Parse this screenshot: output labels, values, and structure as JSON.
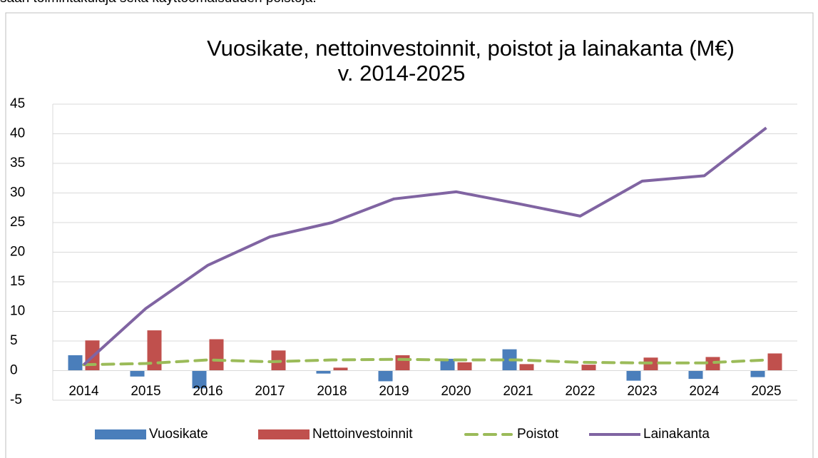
{
  "caption": "saan toimintakuluja sekä käyttöomaisuuden poistoja.",
  "chart_data": {
    "type": "bar-line",
    "title": [
      "Vuosikate, nettoinvestoinnit, poistot ja lainakanta (M€)",
      "v. 2014-2025"
    ],
    "categories": [
      "2014",
      "2015",
      "2016",
      "2017",
      "2018",
      "2019",
      "2020",
      "2021",
      "2022",
      "2023",
      "2024",
      "2025"
    ],
    "series": [
      {
        "name": "Vuosikate",
        "kind": "bar",
        "color": "#4a7ebb",
        "values": [
          2.6,
          -1,
          -3,
          0,
          -0.5,
          -1.8,
          2,
          3.6,
          0,
          -1.7,
          -1.4,
          -1.1
        ]
      },
      {
        "name": "Nettoinvestoinnit",
        "kind": "bar",
        "color": "#c0504d",
        "values": [
          5.1,
          6.8,
          5.3,
          3.4,
          0.5,
          2.6,
          1.4,
          1.1,
          1,
          2.2,
          2.3,
          2.9
        ]
      },
      {
        "name": "Poistot",
        "kind": "dashed-line",
        "color": "#9bbb59",
        "values": [
          1,
          1.2,
          1.8,
          1.5,
          1.8,
          1.9,
          1.8,
          1.8,
          1.4,
          1.3,
          1.3,
          1.8
        ]
      },
      {
        "name": "Lainakanta",
        "kind": "line",
        "color": "#8064a2",
        "values": [
          1,
          10.5,
          17.8,
          22.6,
          25,
          29,
          30.2,
          28.2,
          26.1,
          32,
          32.9,
          41
        ]
      }
    ],
    "ylim": [
      -5,
      45
    ],
    "yticks": [
      -5,
      0,
      5,
      10,
      15,
      20,
      25,
      30,
      35,
      40,
      45
    ],
    "grid": true,
    "legend": "bottom"
  }
}
